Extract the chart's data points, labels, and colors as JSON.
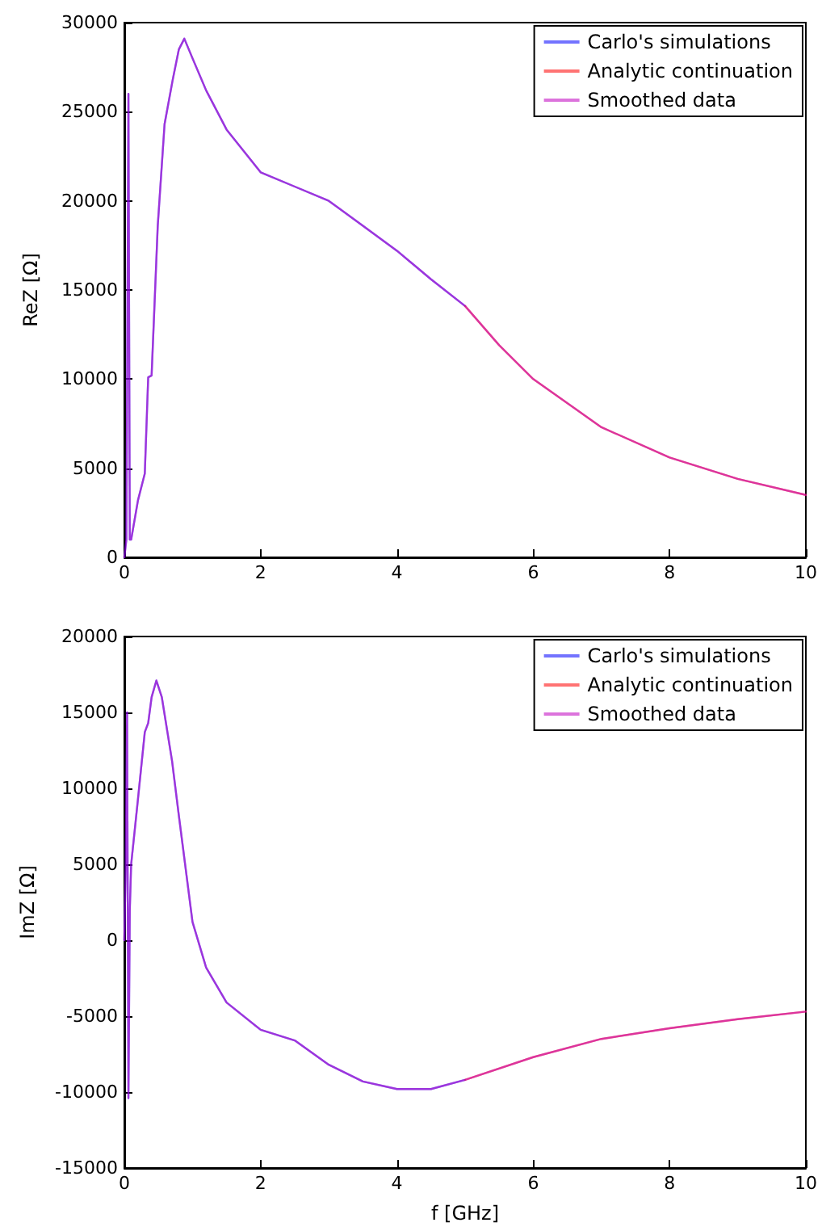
{
  "chart_data": [
    {
      "type": "line",
      "ylabel": "ReZ [Ω]",
      "xlim": [
        0,
        10
      ],
      "xticks": [
        0,
        2,
        4,
        6,
        8,
        10
      ],
      "ylim": [
        0,
        30000
      ],
      "yticks": [
        0,
        5000,
        10000,
        15000,
        20000,
        25000,
        30000
      ],
      "grid": false,
      "legend": "top right",
      "marker": "none",
      "line_style": "solid",
      "series": [
        {
          "name": "Carlo's simulations",
          "color": "#0000ff",
          "x": [
            0,
            0.03,
            0.06,
            0.08,
            0.1,
            0.2,
            0.3,
            0.35,
            0.4,
            0.49,
            0.59,
            0.71,
            0.8,
            0.88,
            1.0,
            1.2,
            1.5,
            2.0,
            2.5,
            3.0,
            3.5,
            4.0,
            4.5,
            5.0
          ],
          "values": [
            0,
            1000,
            26000,
            1000,
            1000,
            3200,
            4700,
            10100,
            10200,
            18600,
            24300,
            26800,
            28500,
            29100,
            28000,
            26200,
            24000,
            21600,
            20800,
            20000,
            18600,
            17200,
            15600,
            14100
          ]
        },
        {
          "name": "Analytic continuation",
          "color": "#ff0000",
          "x": [
            5.0,
            5.5,
            6.0,
            7.0,
            8.0,
            9.0,
            10.0
          ],
          "values": [
            14100,
            11900,
            10000,
            7300,
            5600,
            4400,
            3500
          ]
        },
        {
          "name": "Smoothed data",
          "color": "#bf00bf",
          "x": [
            0,
            0.03,
            0.06,
            0.08,
            0.1,
            0.2,
            0.3,
            0.35,
            0.4,
            0.49,
            0.59,
            0.71,
            0.8,
            0.88,
            1.0,
            1.2,
            1.5,
            2.0,
            2.5,
            3.0,
            3.5,
            4.0,
            4.5,
            5.0,
            5.5,
            6.0,
            7.0,
            8.0,
            9.0,
            10.0
          ],
          "values": [
            0,
            1000,
            26000,
            1000,
            1000,
            3200,
            4700,
            10100,
            10200,
            18600,
            24300,
            26800,
            28500,
            29100,
            28000,
            26200,
            24000,
            21600,
            20800,
            20000,
            18600,
            17200,
            15600,
            14100,
            11900,
            10000,
            7300,
            5600,
            4400,
            3500
          ]
        }
      ]
    },
    {
      "type": "line",
      "xlabel": "f [GHz]",
      "ylabel": "ImZ [Ω]",
      "xlim": [
        0,
        10
      ],
      "xticks": [
        0,
        2,
        4,
        6,
        8,
        10
      ],
      "ylim": [
        -15000,
        20000
      ],
      "yticks": [
        -15000,
        -10000,
        -5000,
        0,
        5000,
        10000,
        15000,
        20000
      ],
      "grid": false,
      "legend": "top right",
      "marker": "none",
      "line_style": "solid",
      "series": [
        {
          "name": "Carlo's simulations",
          "color": "#0000ff",
          "x": [
            0,
            0.02,
            0.04,
            0.06,
            0.08,
            0.1,
            0.2,
            0.3,
            0.35,
            0.4,
            0.47,
            0.55,
            0.7,
            0.8,
            1.0,
            1.2,
            1.5,
            2.0,
            2.5,
            3.0,
            3.5,
            4.0,
            4.5,
            5.0
          ],
          "values": [
            0,
            5000,
            15000,
            -10400,
            2000,
            5000,
            9300,
            13700,
            14300,
            16000,
            17100,
            16000,
            11800,
            8200,
            1200,
            -1800,
            -4100,
            -5900,
            -6600,
            -8200,
            -9300,
            -9800,
            -9800,
            -9200
          ]
        },
        {
          "name": "Analytic continuation",
          "color": "#ff0000",
          "x": [
            5.0,
            6.0,
            7.0,
            8.0,
            9.0,
            10.0
          ],
          "values": [
            -9200,
            -7700,
            -6500,
            -5800,
            -5200,
            -4700
          ]
        },
        {
          "name": "Smoothed data",
          "color": "#bf00bf",
          "x": [
            0,
            0.02,
            0.04,
            0.06,
            0.08,
            0.1,
            0.2,
            0.3,
            0.35,
            0.4,
            0.47,
            0.55,
            0.7,
            0.8,
            1.0,
            1.2,
            1.5,
            2.0,
            2.5,
            3.0,
            3.5,
            4.0,
            4.5,
            5.0,
            6.0,
            7.0,
            8.0,
            9.0,
            10.0
          ],
          "values": [
            0,
            5000,
            15000,
            -10400,
            2000,
            5000,
            9300,
            13700,
            14300,
            16000,
            17100,
            16000,
            11800,
            8200,
            1200,
            -1800,
            -4100,
            -5900,
            -6600,
            -8200,
            -9300,
            -9800,
            -9800,
            -9200,
            -7700,
            -6500,
            -5800,
            -5200,
            -4700
          ]
        }
      ]
    }
  ]
}
